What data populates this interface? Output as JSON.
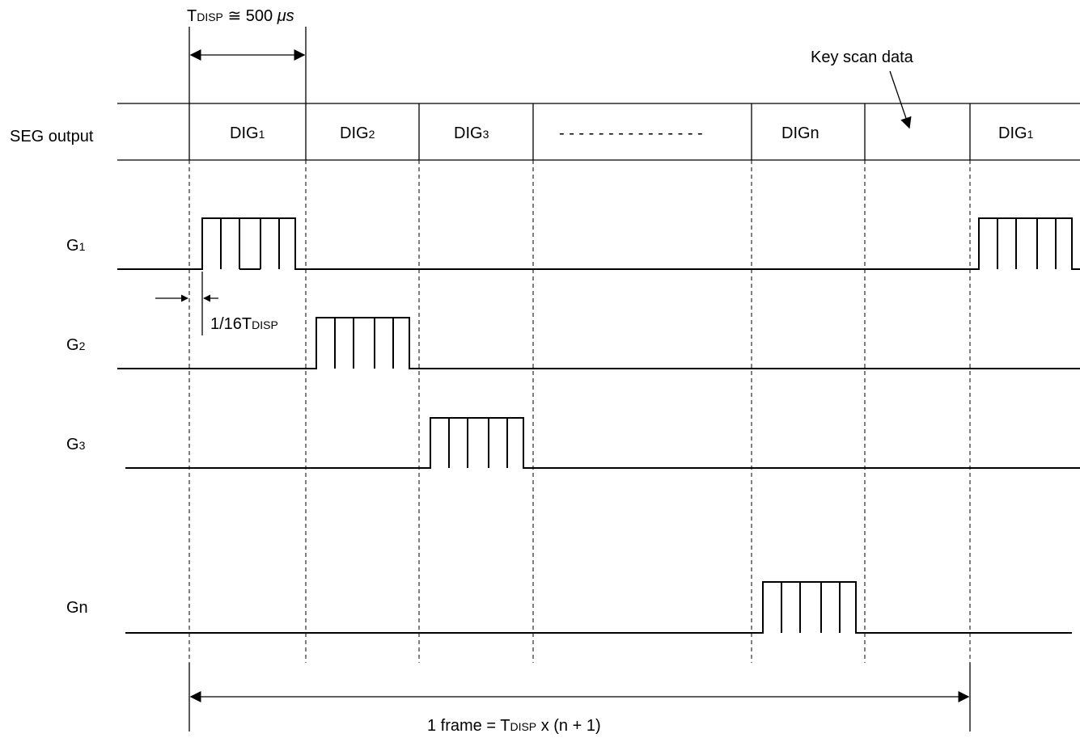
{
  "timing": {
    "tdisp_main": "T",
    "tdisp_sub": "DISP",
    "tdisp_value": " ≅ 500 ",
    "tdisp_unit": "μs",
    "fraction_main": "1/16T",
    "fraction_sub": "DISP",
    "frame_prefix": "1 frame = T",
    "frame_sub": "DISP",
    "frame_suffix": " x (n + 1)"
  },
  "seg": {
    "label": "SEG output",
    "key_scan": "Key scan data",
    "dots": "- - - - - - - - - - - - - - -",
    "cells": [
      {
        "main": "DIG",
        "sub": "1"
      },
      {
        "main": "DIG",
        "sub": "2"
      },
      {
        "main": "DIG",
        "sub": "3"
      },
      {
        "main": "DIGn",
        "sub": ""
      },
      {
        "main": "DIG",
        "sub": "1"
      }
    ]
  },
  "grids": [
    {
      "main": "G",
      "sub": "1"
    },
    {
      "main": "G",
      "sub": "2"
    },
    {
      "main": "G",
      "sub": "3"
    },
    {
      "main": "Gn",
      "sub": ""
    }
  ]
}
